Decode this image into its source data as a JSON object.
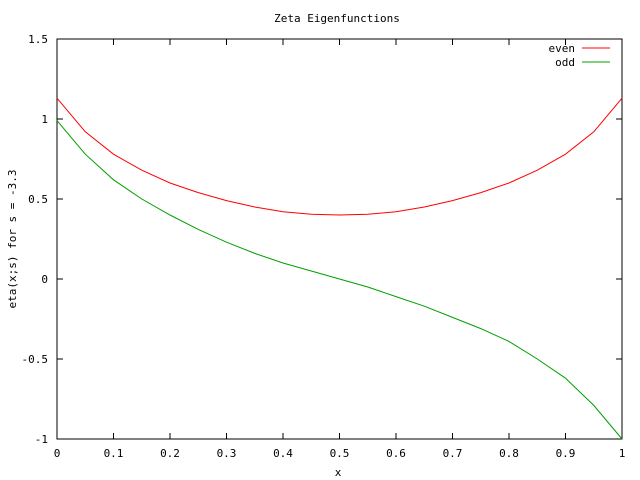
{
  "chart_data": {
    "type": "line",
    "title": "Zeta Eigenfunctions",
    "xlabel": "x",
    "ylabel": "eta(x;s) for s = -3.3",
    "xlim": [
      0,
      1
    ],
    "ylim": [
      -1,
      1.5
    ],
    "xticks": [
      "0",
      "0.1",
      "0.2",
      "0.3",
      "0.4",
      "0.5",
      "0.6",
      "0.7",
      "0.8",
      "0.9",
      "1"
    ],
    "yticks": [
      "-1",
      "-0.5",
      "0",
      "0.5",
      "1",
      "1.5"
    ],
    "grid": false,
    "legend_position": "top-right",
    "x": [
      0,
      0.05,
      0.1,
      0.15,
      0.2,
      0.25,
      0.3,
      0.35,
      0.4,
      0.45,
      0.5,
      0.55,
      0.6,
      0.65,
      0.7,
      0.75,
      0.8,
      0.85,
      0.9,
      0.95,
      1
    ],
    "series": [
      {
        "name": "even",
        "color": "#ff0000",
        "values": [
          1.13,
          0.92,
          0.78,
          0.68,
          0.6,
          0.54,
          0.49,
          0.45,
          0.42,
          0.405,
          0.4,
          0.405,
          0.42,
          0.45,
          0.49,
          0.54,
          0.6,
          0.68,
          0.78,
          0.92,
          1.13
        ]
      },
      {
        "name": "odd",
        "color": "#00a000",
        "values": [
          0.99,
          0.78,
          0.62,
          0.5,
          0.4,
          0.31,
          0.23,
          0.16,
          0.1,
          0.05,
          0.0,
          -0.05,
          -0.11,
          -0.17,
          -0.24,
          -0.31,
          -0.39,
          -0.5,
          -0.62,
          -0.79,
          -1.0
        ]
      }
    ]
  }
}
